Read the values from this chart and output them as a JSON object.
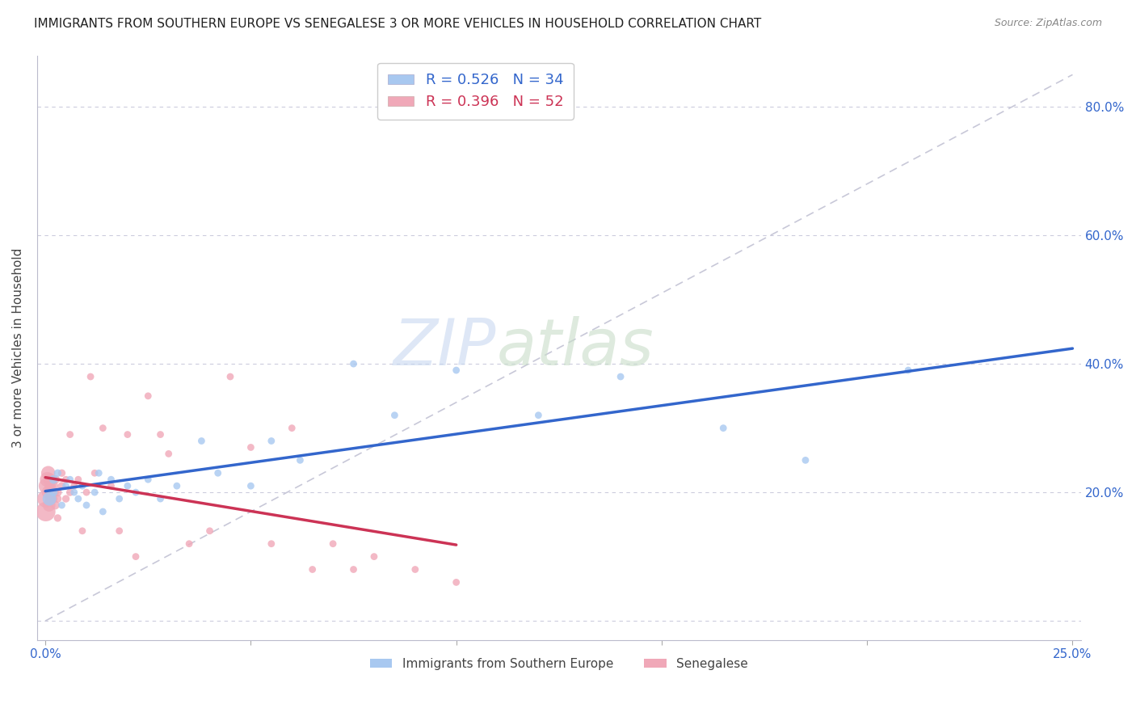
{
  "title": "IMMIGRANTS FROM SOUTHERN EUROPE VS SENEGALESE 3 OR MORE VEHICLES IN HOUSEHOLD CORRELATION CHART",
  "source": "Source: ZipAtlas.com",
  "ylabel": "3 or more Vehicles in Household",
  "xlim": [
    0.0,
    0.25
  ],
  "ylim": [
    0.0,
    0.85
  ],
  "blue_R": "0.526",
  "blue_N": "34",
  "pink_R": "0.396",
  "pink_N": "52",
  "blue_color": "#a8c8f0",
  "pink_color": "#f0a8b8",
  "blue_line_color": "#3366cc",
  "pink_line_color": "#cc3355",
  "diagonal_color": "#c8c8d8",
  "legend_label_blue": "Immigrants from Southern Europe",
  "legend_label_pink": "Senegalese",
  "blue_scatter_x": [
    0.001,
    0.002,
    0.002,
    0.003,
    0.004,
    0.005,
    0.006,
    0.007,
    0.008,
    0.009,
    0.01,
    0.012,
    0.013,
    0.014,
    0.016,
    0.018,
    0.02,
    0.022,
    0.025,
    0.028,
    0.032,
    0.038,
    0.042,
    0.05,
    0.055,
    0.062,
    0.075,
    0.085,
    0.1,
    0.12,
    0.14,
    0.165,
    0.185,
    0.21
  ],
  "blue_scatter_y": [
    0.19,
    0.22,
    0.2,
    0.23,
    0.18,
    0.21,
    0.22,
    0.2,
    0.19,
    0.21,
    0.18,
    0.2,
    0.23,
    0.17,
    0.22,
    0.19,
    0.21,
    0.2,
    0.22,
    0.19,
    0.21,
    0.28,
    0.23,
    0.21,
    0.28,
    0.25,
    0.4,
    0.32,
    0.39,
    0.32,
    0.38,
    0.3,
    0.25,
    0.39
  ],
  "blue_scatter_sizes": [
    150,
    60,
    50,
    45,
    40,
    40,
    40,
    40,
    40,
    40,
    40,
    40,
    40,
    40,
    40,
    40,
    40,
    40,
    40,
    40,
    40,
    40,
    40,
    40,
    40,
    40,
    40,
    40,
    40,
    40,
    40,
    40,
    40,
    40
  ],
  "pink_scatter_x": [
    0.0001,
    0.0002,
    0.0003,
    0.0005,
    0.0007,
    0.0008,
    0.0009,
    0.001,
    0.0012,
    0.0013,
    0.0015,
    0.0016,
    0.0018,
    0.002,
    0.0022,
    0.0024,
    0.0025,
    0.003,
    0.003,
    0.003,
    0.004,
    0.004,
    0.005,
    0.005,
    0.006,
    0.006,
    0.007,
    0.008,
    0.009,
    0.01,
    0.011,
    0.012,
    0.014,
    0.016,
    0.018,
    0.02,
    0.022,
    0.025,
    0.028,
    0.03,
    0.035,
    0.04,
    0.045,
    0.05,
    0.055,
    0.06,
    0.065,
    0.07,
    0.075,
    0.08,
    0.09,
    0.1
  ],
  "pink_scatter_y": [
    0.17,
    0.19,
    0.21,
    0.22,
    0.23,
    0.2,
    0.18,
    0.22,
    0.21,
    0.19,
    0.2,
    0.22,
    0.19,
    0.21,
    0.2,
    0.18,
    0.22,
    0.2,
    0.19,
    0.16,
    0.21,
    0.23,
    0.19,
    0.22,
    0.2,
    0.29,
    0.21,
    0.22,
    0.14,
    0.2,
    0.38,
    0.23,
    0.3,
    0.21,
    0.14,
    0.29,
    0.1,
    0.35,
    0.29,
    0.26,
    0.12,
    0.14,
    0.38,
    0.27,
    0.12,
    0.3,
    0.08,
    0.12,
    0.08,
    0.1,
    0.08,
    0.06
  ],
  "pink_scatter_sizes": [
    300,
    250,
    200,
    180,
    160,
    150,
    130,
    120,
    100,
    90,
    85,
    80,
    75,
    70,
    65,
    60,
    55,
    55,
    50,
    45,
    50,
    45,
    45,
    40,
    45,
    40,
    40,
    40,
    40,
    40,
    40,
    40,
    40,
    40,
    40,
    40,
    40,
    40,
    40,
    40,
    40,
    40,
    40,
    40,
    40,
    40,
    40,
    40,
    40,
    40,
    40,
    40
  ]
}
